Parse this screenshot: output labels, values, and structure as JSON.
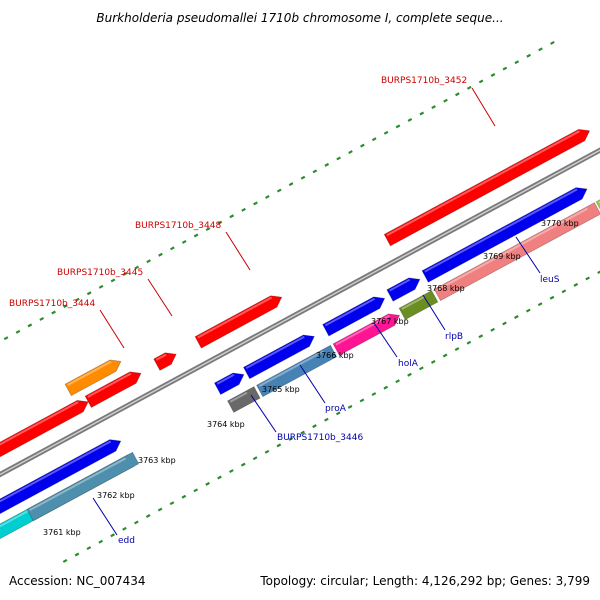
{
  "title": "Burkholderia pseudomallei 1710b chromosome I, complete seque...",
  "footer": {
    "accession_label": "Accession:",
    "accession": "NC_007434",
    "topology_label": "Topology:",
    "topology": "circular",
    "length_label": "Length:",
    "length": "4,126,292 bp",
    "genes_label": "Genes:",
    "genes": "3,799"
  },
  "colors": {
    "backbone": "#8c8c8c",
    "tick": "#2e8b2e",
    "label_red": "#cc0000",
    "label_blue": "#0000aa",
    "kbp_text": "#000000"
  },
  "tick_labels": [
    "3761 kbp",
    "3762 kbp",
    "3763 kbp",
    "3764 kbp",
    "3765 kbp",
    "3766 kbp",
    "3767 kbp",
    "3768 kbp",
    "3769 kbp",
    "3770 kbp"
  ],
  "genes": [
    {
      "label": "BURPS1710b_3452",
      "color": "#ff0000",
      "label_color": "#cc0000"
    },
    {
      "label": "BURPS1710b_3448",
      "color": "#ff0000",
      "label_color": "#cc0000"
    },
    {
      "label": "BURPS1710b_3445",
      "color": "#ff0000",
      "label_color": "#cc0000"
    },
    {
      "label": "BURPS1710b_3444",
      "color": "#ff8c00",
      "label_color": "#cc0000"
    },
    {
      "label": "BURPS1710b_3446",
      "color": "#696969",
      "label_color": "#0000aa"
    },
    {
      "label": "proA",
      "color": "#4682b4",
      "label_color": "#0000aa"
    },
    {
      "label": "holA",
      "color": "#ff1493",
      "label_color": "#0000aa"
    },
    {
      "label": "rlpB",
      "color": "#6b8e23",
      "label_color": "#0000aa"
    },
    {
      "label": "leuS",
      "color": "#f08080",
      "label_color": "#0000aa"
    },
    {
      "label": "edd",
      "color": "#00ced1",
      "label_color": "#0000aa"
    }
  ]
}
